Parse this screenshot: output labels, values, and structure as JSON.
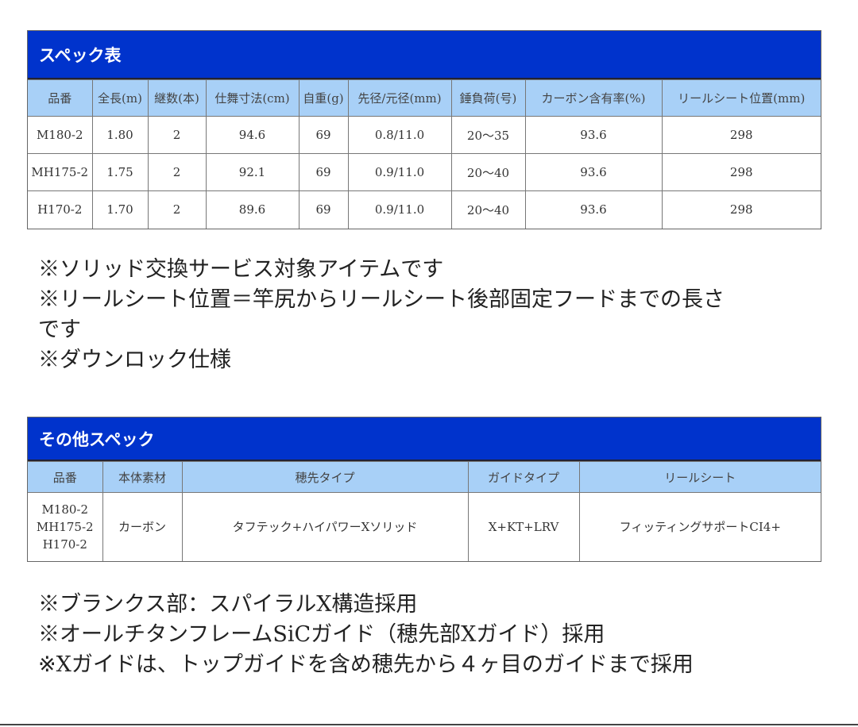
{
  "spec_table": {
    "title": "スペック表",
    "headers": [
      "品番",
      "全長(m)",
      "継数(本)",
      "仕舞寸法(cm)",
      "自重(g)",
      "先径/元径(mm)",
      "錘負荷(号)",
      "カーボン含有率(%)",
      "リールシート位置(mm)"
    ],
    "rows": [
      [
        "M180-2",
        "1.80",
        "2",
        "94.6",
        "69",
        "0.8/11.0",
        "20〜35",
        "93.6",
        "298"
      ],
      [
        "MH175-2",
        "1.75",
        "2",
        "92.1",
        "69",
        "0.9/11.0",
        "20〜40",
        "93.6",
        "298"
      ],
      [
        "H170-2",
        "1.70",
        "2",
        "89.6",
        "69",
        "0.9/11.0",
        "20〜40",
        "93.6",
        "298"
      ]
    ]
  },
  "notes1": [
    "※ソリッド交換サービス対象アイテムです",
    "※リールシート位置＝竿尻からリールシート後部固定フードまでの長さ",
    "です",
    "※ダウンロック仕様"
  ],
  "other_table": {
    "title": "その他スペック",
    "headers": [
      "品番",
      "本体素材",
      "穂先タイプ",
      "ガイドタイプ",
      "リールシート"
    ],
    "models": [
      "M180-2",
      "MH175-2",
      "H170-2"
    ],
    "material": "カーボン",
    "tip_type": "タフテック+ハイパワーXソリッド",
    "guide_type": "X+KT+LRV",
    "reel_seat": "フィッティングサポートCI4+"
  },
  "notes2": [
    "※ブランクス部：スパイラルX構造採用",
    "※オールチタンフレームSiCガイド（穂先部Xガイド）採用",
    "※Xガイドは、トップガイドを含め穂先から４ヶ目のガイドまで採用"
  ],
  "colors": {
    "title_bar": "#0033cc",
    "header_row": "#a8d0f7"
  }
}
